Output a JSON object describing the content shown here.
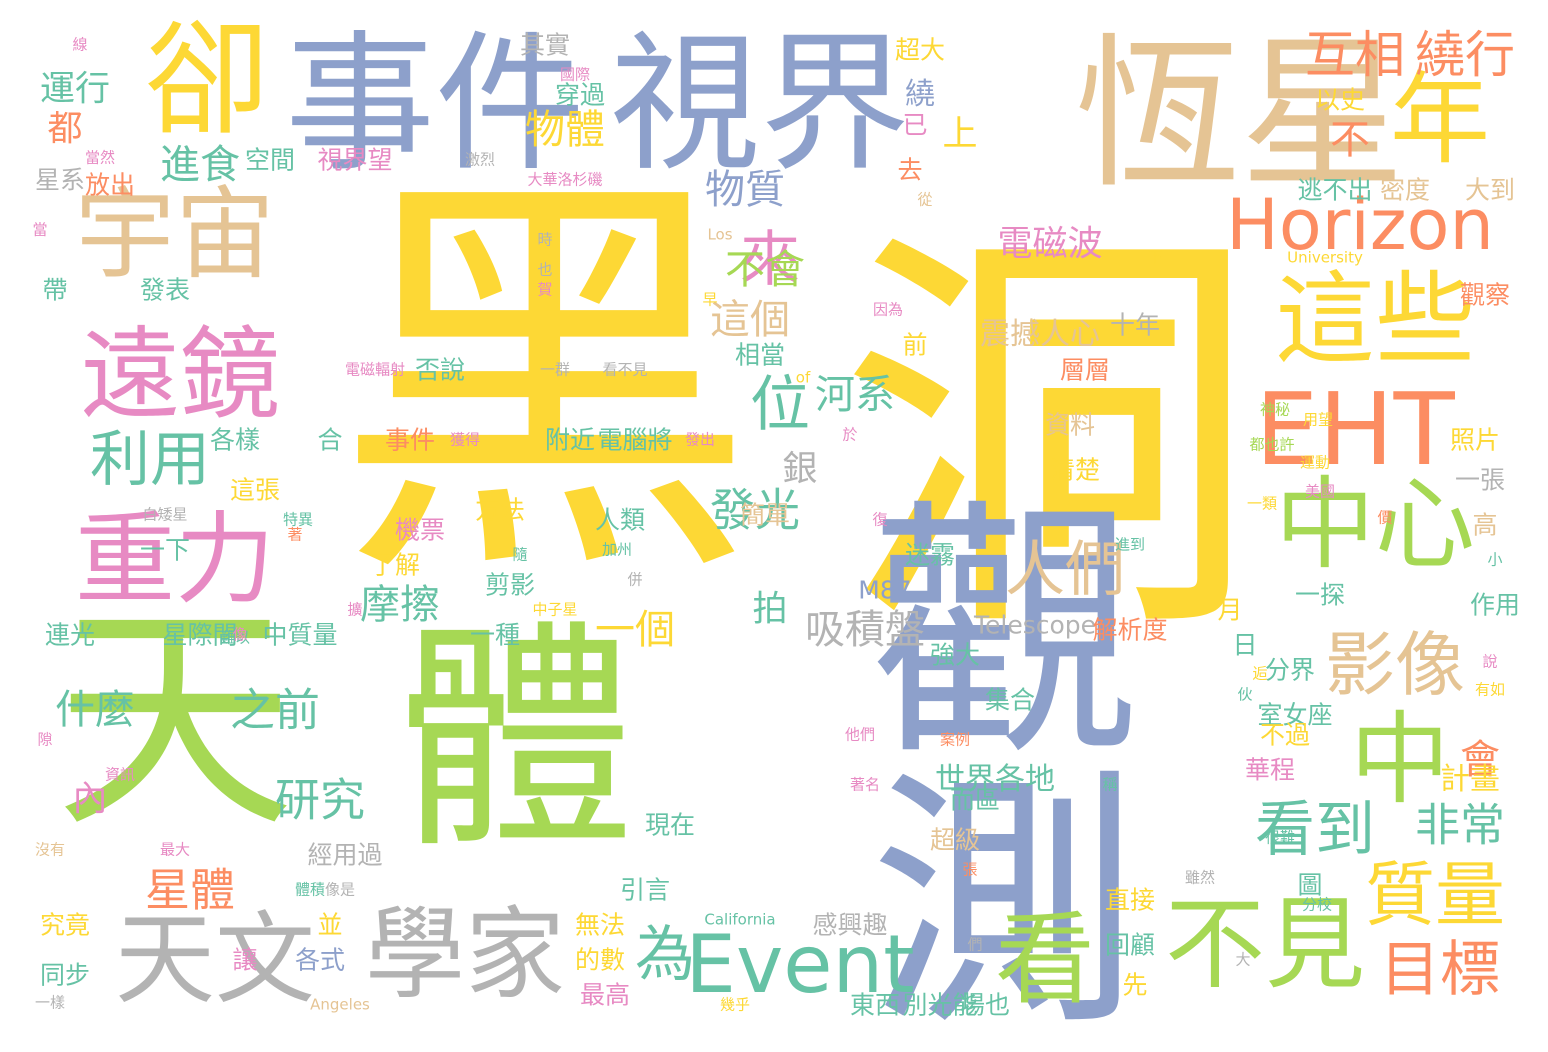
{
  "palette": {
    "yellow": "#fdd835",
    "green": "#a6d854",
    "blue": "#8da0cb",
    "tan": "#e5c494",
    "pink": "#e78ac3",
    "orange": "#fc8d62",
    "teal": "#66c2a5",
    "gray": "#b3b3b3"
  },
  "words": [
    {
      "text": "黑",
      "color": "yellow"
    },
    {
      "text": "洞",
      "color": "yellow"
    },
    {
      "text": "觀測",
      "color": "blue"
    },
    {
      "text": "天",
      "color": "green"
    },
    {
      "text": "體",
      "color": "green"
    },
    {
      "text": "恆星",
      "color": "tan"
    },
    {
      "text": "事件",
      "color": "blue"
    },
    {
      "text": "視界",
      "color": "blue"
    },
    {
      "text": "卻",
      "color": "yellow"
    },
    {
      "text": "宇宙",
      "color": "tan"
    },
    {
      "text": "遠鏡",
      "color": "pink"
    },
    {
      "text": "重力",
      "color": "pink"
    },
    {
      "text": "年",
      "color": "yellow"
    },
    {
      "text": "這些",
      "color": "yellow"
    },
    {
      "text": "EHT",
      "color": "orange"
    },
    {
      "text": "中心",
      "color": "green"
    },
    {
      "text": "天文",
      "color": "gray"
    },
    {
      "text": "學家",
      "color": "gray"
    },
    {
      "text": "看",
      "color": "green"
    },
    {
      "text": "不見",
      "color": "green"
    },
    {
      "text": "Horizon",
      "color": "orange"
    },
    {
      "text": "中",
      "color": "green"
    },
    {
      "text": "Event",
      "color": "teal"
    },
    {
      "text": "影像",
      "color": "tan"
    },
    {
      "text": "質量",
      "color": "yellow"
    },
    {
      "text": "目標",
      "color": "orange"
    },
    {
      "text": "利用",
      "color": "teal"
    },
    {
      "text": "人們",
      "color": "tan"
    },
    {
      "text": "為",
      "color": "teal"
    },
    {
      "text": "看到",
      "color": "teal"
    },
    {
      "text": "位",
      "color": "teal"
    },
    {
      "text": "來",
      "color": "pink"
    },
    {
      "text": "互相",
      "color": "orange"
    },
    {
      "text": "繞行",
      "color": "orange"
    },
    {
      "text": "運行",
      "color": "teal"
    },
    {
      "text": "進食",
      "color": "teal"
    },
    {
      "text": "物體",
      "color": "yellow"
    },
    {
      "text": "物質",
      "color": "blue"
    },
    {
      "text": "不會",
      "color": "green"
    },
    {
      "text": "這個",
      "color": "tan"
    },
    {
      "text": "電磁波",
      "color": "pink"
    },
    {
      "text": "發光",
      "color": "teal"
    },
    {
      "text": "研究",
      "color": "teal"
    },
    {
      "text": "之前",
      "color": "teal"
    },
    {
      "text": "什麼",
      "color": "teal"
    },
    {
      "text": "星體",
      "color": "orange"
    },
    {
      "text": "非常",
      "color": "teal"
    },
    {
      "text": "會",
      "color": "orange"
    },
    {
      "text": "一個",
      "color": "yellow"
    },
    {
      "text": "摩擦",
      "color": "teal"
    },
    {
      "text": "吸積盤",
      "color": "gray"
    },
    {
      "text": "河系",
      "color": "teal"
    },
    {
      "text": "上",
      "color": "yellow"
    },
    {
      "text": "不",
      "color": "orange"
    },
    {
      "text": "都",
      "color": "orange"
    },
    {
      "text": "世界各地",
      "color": "teal"
    },
    {
      "text": "震撼人心",
      "color": "tan"
    },
    {
      "text": "電腦將",
      "color": "teal"
    },
    {
      "text": "附近",
      "color": "teal"
    },
    {
      "text": "事件",
      "color": "orange"
    },
    {
      "text": "內",
      "color": "pink"
    },
    {
      "text": "Telescope",
      "color": "gray"
    },
    {
      "text": "解析度",
      "color": "orange"
    },
    {
      "text": "超級",
      "color": "tan"
    },
    {
      "text": "集合",
      "color": "teal"
    },
    {
      "text": "圖",
      "color": "teal"
    },
    {
      "text": "引言",
      "color": "teal"
    },
    {
      "text": "現在",
      "color": "teal"
    },
    {
      "text": "M87",
      "color": "blue"
    },
    {
      "text": "迷霧",
      "color": "teal"
    },
    {
      "text": "剪影",
      "color": "teal"
    },
    {
      "text": "一種",
      "color": "teal"
    },
    {
      "text": "方法",
      "color": "yellow"
    },
    {
      "text": "人類",
      "color": "teal"
    },
    {
      "text": "銀",
      "color": "gray"
    },
    {
      "text": "計畫",
      "color": "yellow"
    },
    {
      "text": "室女座",
      "color": "teal"
    },
    {
      "text": "資料",
      "color": "tan"
    },
    {
      "text": "清楚",
      "color": "yellow"
    },
    {
      "text": "強大",
      "color": "teal"
    },
    {
      "text": "簡單",
      "color": "tan"
    },
    {
      "text": "繞",
      "color": "blue"
    },
    {
      "text": "拍",
      "color": "teal"
    },
    {
      "text": "照片",
      "color": "yellow"
    },
    {
      "text": "一張",
      "color": "gray"
    },
    {
      "text": "一探",
      "color": "teal"
    },
    {
      "text": "並",
      "color": "yellow"
    },
    {
      "text": "究竟",
      "color": "yellow"
    },
    {
      "text": "同步",
      "color": "teal"
    },
    {
      "text": "讓",
      "color": "pink"
    },
    {
      "text": "各式",
      "color": "blue"
    },
    {
      "text": "最高",
      "color": "pink"
    },
    {
      "text": "的數",
      "color": "yellow"
    },
    {
      "text": "其實",
      "color": "gray"
    },
    {
      "text": "穿過",
      "color": "teal"
    },
    {
      "text": "超大",
      "color": "yellow"
    },
    {
      "text": "空間",
      "color": "teal"
    },
    {
      "text": "視界望",
      "color": "pink"
    },
    {
      "text": "星系",
      "color": "gray"
    },
    {
      "text": "放出",
      "color": "orange"
    },
    {
      "text": "帶",
      "color": "teal"
    },
    {
      "text": "發表",
      "color": "teal"
    },
    {
      "text": "各樣",
      "color": "teal"
    },
    {
      "text": "這張",
      "color": "yellow"
    },
    {
      "text": "一下",
      "color": "teal"
    },
    {
      "text": "星際間",
      "color": "teal"
    },
    {
      "text": "連光",
      "color": "teal"
    },
    {
      "text": "中質量",
      "color": "teal"
    },
    {
      "text": "了解",
      "color": "yellow"
    },
    {
      "text": "機票",
      "color": "pink"
    },
    {
      "text": "合",
      "color": "teal"
    },
    {
      "text": "否說",
      "color": "teal"
    },
    {
      "text": "層層",
      "color": "orange"
    },
    {
      "text": "逃不出",
      "color": "teal"
    },
    {
      "text": "大到",
      "color": "tan"
    },
    {
      "text": "密度",
      "color": "tan"
    },
    {
      "text": "以史",
      "color": "yellow"
    },
    {
      "text": "十年",
      "color": "gray"
    },
    {
      "text": "已",
      "color": "pink"
    },
    {
      "text": "去",
      "color": "orange"
    },
    {
      "text": "相當",
      "color": "teal"
    },
    {
      "text": "前",
      "color": "yellow"
    },
    {
      "text": "經用過",
      "color": "gray"
    },
    {
      "text": "回顧",
      "color": "teal"
    },
    {
      "text": "場也",
      "color": "teal"
    },
    {
      "text": "先",
      "color": "yellow"
    },
    {
      "text": "東西",
      "color": "teal"
    },
    {
      "text": "別光能",
      "color": "teal"
    },
    {
      "text": "無法",
      "color": "yellow"
    },
    {
      "text": "而區",
      "color": "teal"
    },
    {
      "text": "月",
      "color": "yellow"
    },
    {
      "text": "日",
      "color": "teal"
    },
    {
      "text": "分界",
      "color": "teal"
    },
    {
      "text": "不過",
      "color": "yellow"
    },
    {
      "text": "觀察",
      "color": "orange"
    },
    {
      "text": "高",
      "color": "tan"
    },
    {
      "text": "作用",
      "color": "teal"
    },
    {
      "text": "華程",
      "color": "pink"
    },
    {
      "text": "直接",
      "color": "yellow"
    },
    {
      "text": "感興趣",
      "color": "gray"
    },
    {
      "text": "大華洛杉磯",
      "color": "pink"
    },
    {
      "text": "國際",
      "color": "pink"
    },
    {
      "text": "激烈",
      "color": "gray"
    },
    {
      "text": "University",
      "color": "yellow"
    },
    {
      "text": "California",
      "color": "teal"
    },
    {
      "text": "Angeles",
      "color": "tan"
    },
    {
      "text": "Los",
      "color": "tan"
    },
    {
      "text": "of",
      "color": "yellow"
    },
    {
      "text": "一群",
      "color": "gray"
    },
    {
      "text": "看不見",
      "color": "gray"
    },
    {
      "text": "電磁輻射",
      "color": "pink"
    },
    {
      "text": "加州",
      "color": "teal"
    },
    {
      "text": "特異",
      "color": "teal"
    },
    {
      "text": "難以",
      "color": "teal"
    },
    {
      "text": "中子星",
      "color": "yellow"
    },
    {
      "text": "資訊",
      "color": "pink"
    },
    {
      "text": "最大",
      "color": "pink"
    },
    {
      "text": "體積",
      "color": "teal"
    },
    {
      "text": "沒有",
      "color": "tan"
    },
    {
      "text": "一樣",
      "color": "gray"
    },
    {
      "text": "像是",
      "color": "gray"
    },
    {
      "text": "他們",
      "color": "pink"
    },
    {
      "text": "案例",
      "color": "orange"
    },
    {
      "text": "著名",
      "color": "pink"
    },
    {
      "text": "神秘",
      "color": "green"
    },
    {
      "text": "用望",
      "color": "yellow"
    },
    {
      "text": "都也許",
      "color": "green"
    },
    {
      "text": "美國",
      "color": "pink"
    },
    {
      "text": "運動",
      "color": "yellow"
    },
    {
      "text": "復",
      "color": "pink"
    },
    {
      "text": "獲得",
      "color": "pink"
    },
    {
      "text": "發出",
      "color": "pink"
    },
    {
      "text": "白矮星",
      "color": "gray"
    },
    {
      "text": "當然",
      "color": "pink"
    },
    {
      "text": "隙",
      "color": "pink"
    },
    {
      "text": "時",
      "color": "gray"
    },
    {
      "text": "早",
      "color": "yellow"
    },
    {
      "text": "也",
      "color": "gray"
    },
    {
      "text": "因為",
      "color": "pink"
    },
    {
      "text": "很難",
      "color": "teal"
    },
    {
      "text": "分校",
      "color": "teal"
    },
    {
      "text": "雖然",
      "color": "gray"
    },
    {
      "text": "幾乎",
      "color": "yellow"
    },
    {
      "text": "一類",
      "color": "yellow"
    },
    {
      "text": "價",
      "color": "orange"
    },
    {
      "text": "小",
      "color": "teal"
    },
    {
      "text": "說",
      "color": "pink"
    },
    {
      "text": "有如",
      "color": "yellow"
    },
    {
      "text": "伙",
      "color": "teal"
    },
    {
      "text": "逅",
      "color": "yellow"
    },
    {
      "text": "下",
      "color": "yellow"
    },
    {
      "text": "從",
      "color": "tan"
    },
    {
      "text": "們",
      "color": "gray"
    },
    {
      "text": "大",
      "color": "gray"
    },
    {
      "text": "稱",
      "color": "teal"
    },
    {
      "text": "張",
      "color": "orange"
    },
    {
      "text": "像",
      "color": "pink"
    },
    {
      "text": "進到",
      "color": "teal"
    },
    {
      "text": "隨",
      "color": "teal"
    },
    {
      "text": "併",
      "color": "gray"
    },
    {
      "text": "於",
      "color": "pink"
    },
    {
      "text": "擴",
      "color": "pink"
    },
    {
      "text": "著",
      "color": "orange"
    },
    {
      "text": "賀",
      "color": "pink"
    },
    {
      "text": "當",
      "color": "pink"
    },
    {
      "text": "線",
      "color": "pink"
    }
  ]
}
